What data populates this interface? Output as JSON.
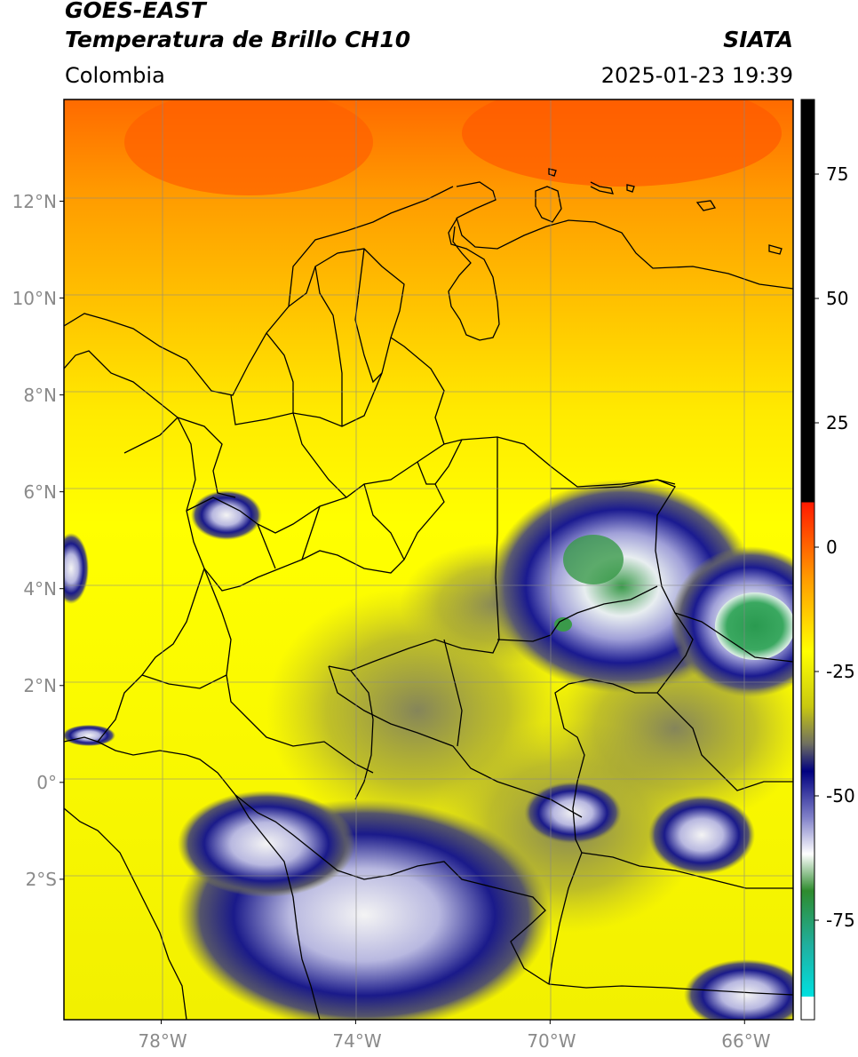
{
  "header": {
    "satellite": "GOES-EAST",
    "product": "Temperatura de Brillo CH10",
    "region": "Colombia",
    "brand": "SIATA",
    "datetime": "2025-01-23 19:39"
  },
  "map": {
    "lon_range": [
      -80,
      -65
    ],
    "lat_range": [
      -4.9,
      14.1
    ],
    "lon_ticks": [
      {
        "value": -78,
        "label": "78°W"
      },
      {
        "value": -74,
        "label": "74°W"
      },
      {
        "value": -70,
        "label": "70°W"
      },
      {
        "value": -66,
        "label": "66°W"
      }
    ],
    "lat_ticks": [
      {
        "value": 12,
        "label": "12°N"
      },
      {
        "value": 10,
        "label": "10°N"
      },
      {
        "value": 8,
        "label": "8°N"
      },
      {
        "value": 6,
        "label": "6°N"
      },
      {
        "value": 4,
        "label": "4°N"
      },
      {
        "value": 2,
        "label": "2°N"
      },
      {
        "value": 0,
        "label": "0°"
      },
      {
        "value": -2,
        "label": "2°S"
      }
    ],
    "grid": true
  },
  "colorbar": {
    "range": [
      -95,
      90
    ],
    "ticks": [
      {
        "value": 75,
        "label": "75"
      },
      {
        "value": 50,
        "label": "50"
      },
      {
        "value": 25,
        "label": "25"
      },
      {
        "value": 0,
        "label": "0"
      },
      {
        "value": -25,
        "label": "-25"
      },
      {
        "value": -50,
        "label": "-50"
      },
      {
        "value": -75,
        "label": "-75"
      }
    ],
    "colors": {
      "black": "#000000",
      "red": "#ff1a00",
      "orange": "#ff9a00",
      "yellow": "#ffff00",
      "olive": "#9a9a30",
      "navy": "#000080",
      "white": "#ffffff",
      "green": "#2e8b2e",
      "teal": "#20b0a0",
      "cyan": "#00e0e0"
    }
  }
}
